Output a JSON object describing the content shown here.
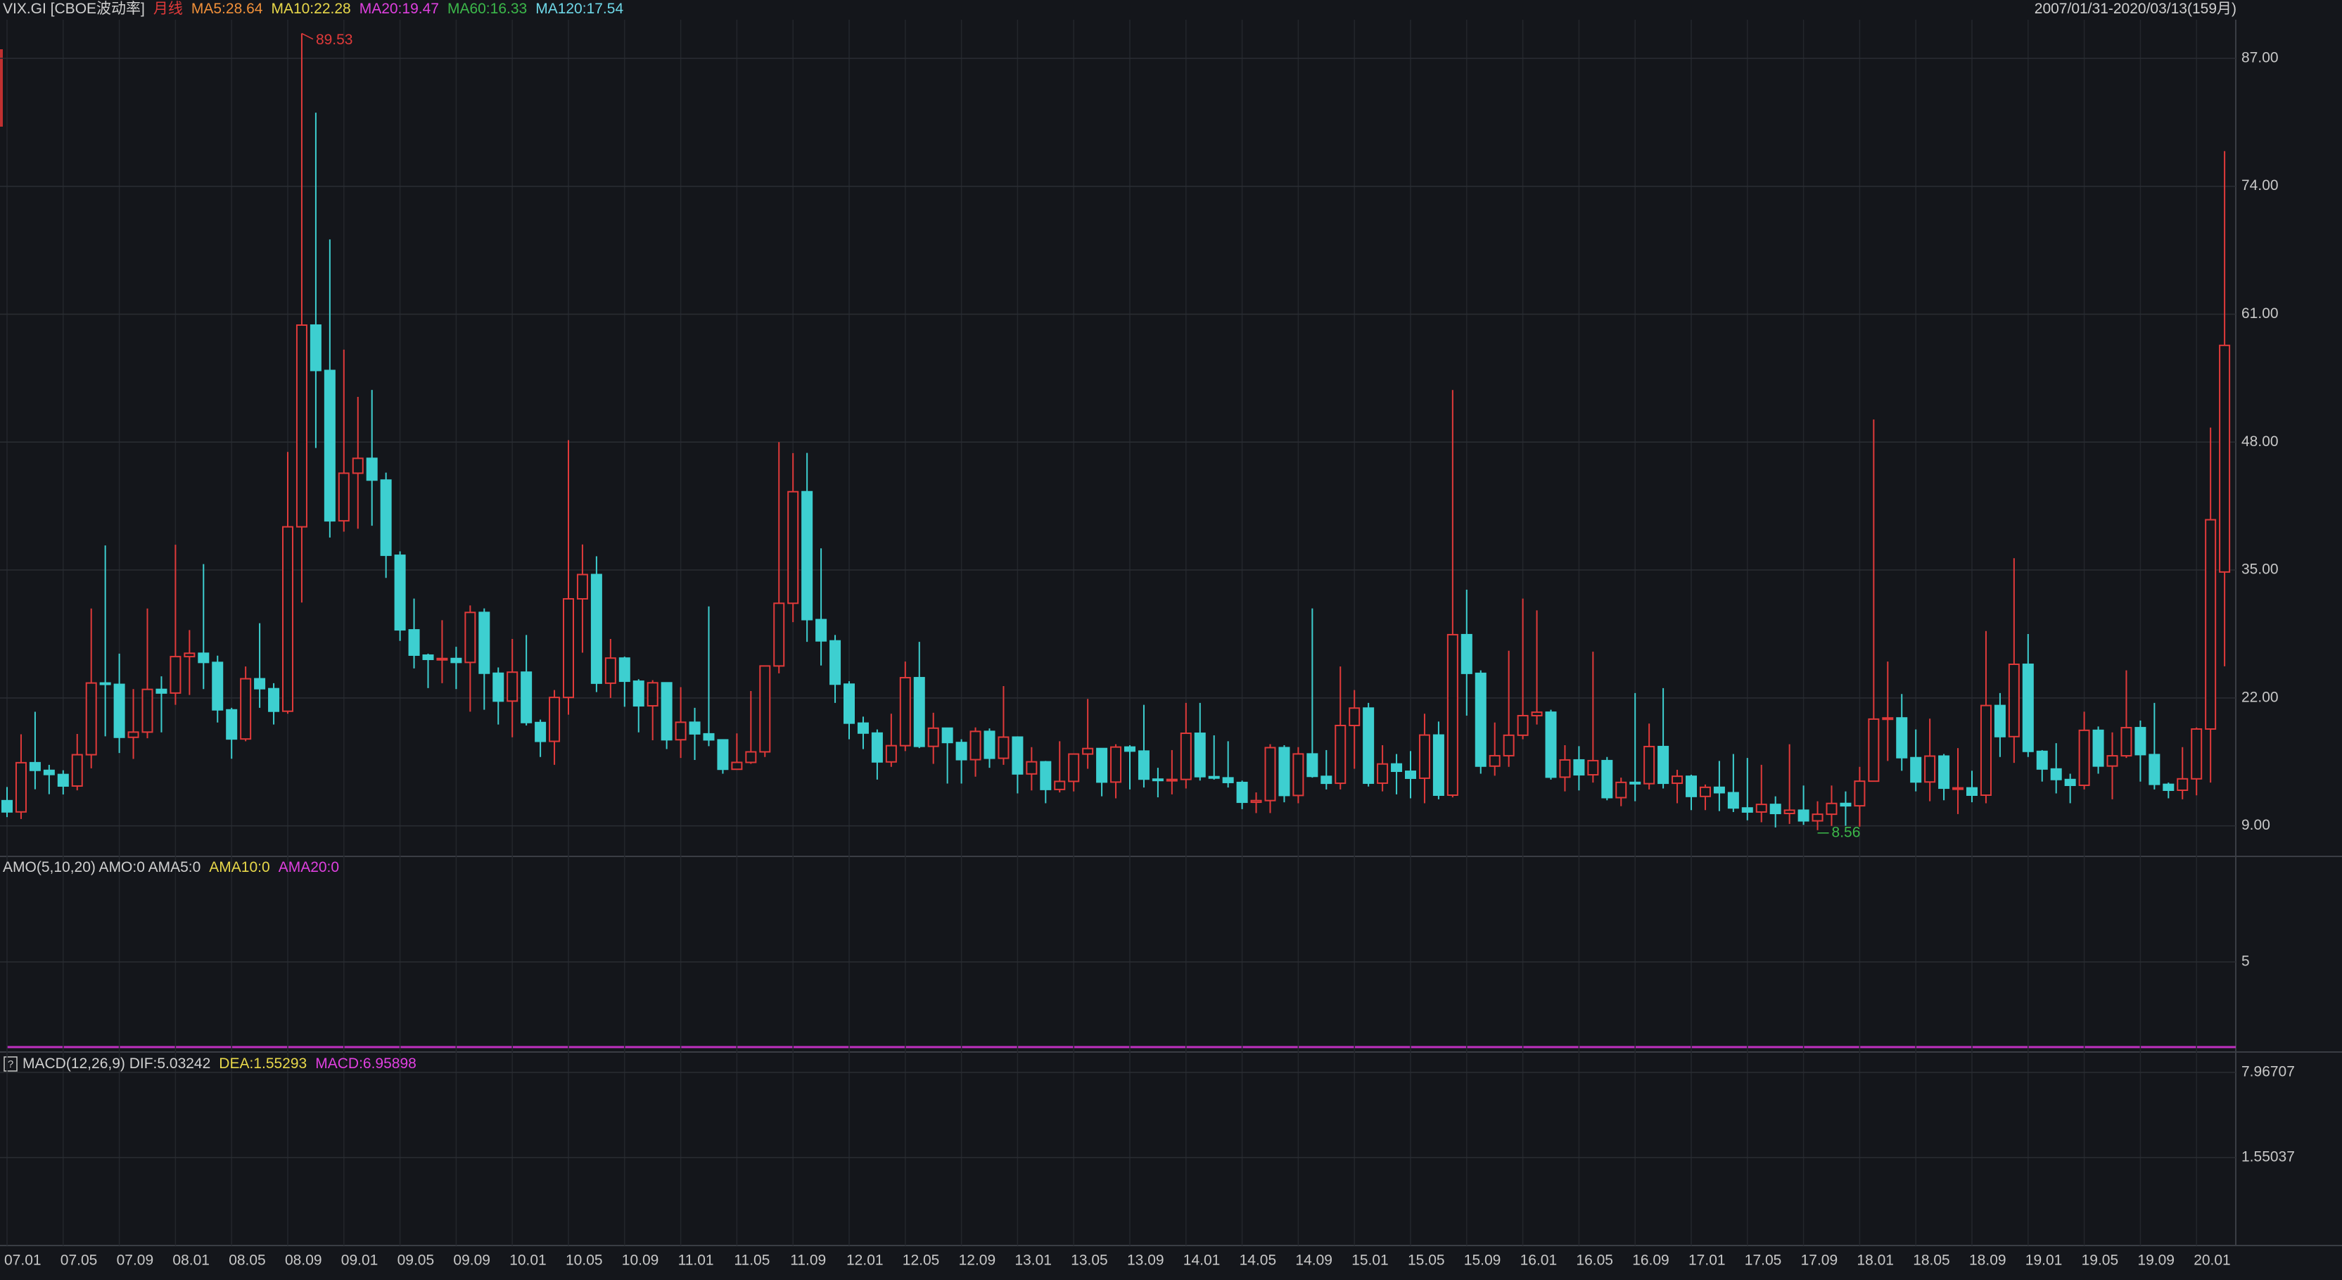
{
  "chart_data": {
    "type": "candlestick",
    "header": {
      "symbol": "VIX.GI [CBOE波动率]",
      "period": "月线",
      "period_color": "#e03a3a",
      "indicators": [
        {
          "label": "MA5:28.64",
          "color": "#f0903a"
        },
        {
          "label": "MA10:22.28",
          "color": "#e8d84a"
        },
        {
          "label": "MA20:19.47",
          "color": "#e040e0"
        },
        {
          "label": "MA60:16.33",
          "color": "#3cb84a"
        },
        {
          "label": "MA120:17.54",
          "color": "#6fd8e8"
        }
      ],
      "range": "2007/01/31-2020/03/13(159月)"
    },
    "categories": [
      "07.01",
      null,
      null,
      null,
      "07.05",
      null,
      null,
      null,
      "07.09",
      null,
      null,
      null,
      "08.01",
      null,
      null,
      null,
      "08.05",
      null,
      null,
      null,
      "08.09",
      null,
      null,
      null,
      "09.01",
      null,
      null,
      null,
      "09.05",
      null,
      null,
      null,
      "09.09",
      null,
      null,
      null,
      "10.01",
      null,
      null,
      null,
      "10.05",
      null,
      null,
      null,
      "10.09",
      null,
      null,
      null,
      "11.01",
      null,
      null,
      null,
      "11.05",
      null,
      null,
      null,
      "11.09",
      null,
      null,
      null,
      "12.01",
      null,
      null,
      null,
      "12.05",
      null,
      null,
      null,
      "12.09",
      null,
      null,
      null,
      "13.01",
      null,
      null,
      null,
      "13.05",
      null,
      null,
      null,
      "13.09",
      null,
      null,
      null,
      "14.01",
      null,
      null,
      null,
      "14.05",
      null,
      null,
      null,
      "14.09",
      null,
      null,
      null,
      "15.01",
      null,
      null,
      null,
      "15.05",
      null,
      null,
      null,
      "15.09",
      null,
      null,
      null,
      "16.01",
      null,
      null,
      null,
      "16.05",
      null,
      null,
      null,
      "16.09",
      null,
      null,
      null,
      "17.01",
      null,
      null,
      null,
      "17.05",
      null,
      null,
      null,
      "17.09",
      null,
      null,
      null,
      "18.01",
      null,
      null,
      null,
      "18.05",
      null,
      null,
      null,
      "18.09",
      null,
      null,
      null,
      "19.01",
      null,
      null,
      null,
      "19.05",
      null,
      null,
      null,
      "19.09",
      null,
      null,
      null,
      "20.01",
      null,
      null
    ],
    "open": [
      11.56,
      10.42,
      15.42,
      14.64,
      14.22,
      13.05,
      16.23,
      23.52,
      23.38,
      18.0,
      18.53,
      22.87,
      22.5,
      26.2,
      26.54,
      25.61,
      20.79,
      17.83,
      23.95,
      22.94,
      20.65,
      39.39,
      59.89,
      55.28,
      40.0,
      44.84,
      46.35,
      44.14,
      36.5,
      28.92,
      26.35,
      25.92,
      26.01,
      25.61,
      30.69,
      24.51,
      21.68,
      24.62,
      19.5,
      17.59,
      22.05,
      32.07,
      34.54,
      23.5,
      26.05,
      23.7,
      21.2,
      23.54,
      17.75,
      19.53,
      18.35,
      17.74,
      14.75,
      15.45,
      16.52,
      25.25,
      31.62,
      42.96,
      29.96,
      27.8,
      23.4,
      19.44,
      18.43,
      15.5,
      17.15,
      24.06,
      17.08,
      18.93,
      17.47,
      15.73,
      18.6,
      15.87,
      18.02,
      14.28,
      15.51,
      12.7,
      13.52,
      16.3,
      16.86,
      13.45,
      17.01,
      16.6,
      13.75,
      13.7,
      13.72,
      18.41,
      14.0,
      13.88,
      13.41,
      11.4,
      11.57,
      16.95,
      12.09,
      16.31,
      14.03,
      13.33,
      19.2,
      20.97,
      13.34,
      15.29,
      14.55,
      13.84,
      18.23,
      12.12,
      28.43,
      24.5,
      15.07,
      16.13,
      18.21,
      20.2,
      20.55,
      13.95,
      15.7,
      14.19,
      15.63,
      11.87,
      13.42,
      13.29,
      17.06,
      13.33,
      14.04,
      11.99,
      12.92,
      12.37,
      10.82,
      10.41,
      11.18,
      10.26,
      10.59,
      9.51,
      10.18,
      11.28,
      11.04,
      13.54,
      19.85,
      19.97,
      15.93,
      13.46,
      16.09,
      12.83,
      12.86,
      12.12,
      21.23,
      18.07,
      25.42,
      16.57,
      14.78,
      13.71,
      13.12,
      18.71,
      15.08,
      16.12,
      18.98,
      16.24,
      13.22,
      12.62,
      13.78,
      18.84,
      34.8
    ],
    "high": [
      12.95,
      18.31,
      20.59,
      15.2,
      14.65,
      18.34,
      31.09,
      37.5,
      26.5,
      22.9,
      31.09,
      24.2,
      37.57,
      28.9,
      35.6,
      26.3,
      21.0,
      25.2,
      29.6,
      23.5,
      47.0,
      89.53,
      81.48,
      68.6,
      57.4,
      52.6,
      53.3,
      44.9,
      36.9,
      32.1,
      26.5,
      29.9,
      27.2,
      31.4,
      31.1,
      25.1,
      28.0,
      28.4,
      19.8,
      22.8,
      48.2,
      37.6,
      36.4,
      28.0,
      26.2,
      23.9,
      23.8,
      23.6,
      23.1,
      21.0,
      31.3,
      17.8,
      18.4,
      22.7,
      25.3,
      48.0,
      46.88,
      46.9,
      37.2,
      28.4,
      23.7,
      20.1,
      18.8,
      20.4,
      25.7,
      27.7,
      20.5,
      18.9,
      17.8,
      19.0,
      18.9,
      23.2,
      18.1,
      17.0,
      15.6,
      17.6,
      16.3,
      21.9,
      16.9,
      17.3,
      17.2,
      21.3,
      14.9,
      16.7,
      21.5,
      21.5,
      18.2,
      17.6,
      13.6,
      12.4,
      17.3,
      17.2,
      17.0,
      31.1,
      16.7,
      25.2,
      22.8,
      21.5,
      17.2,
      16.3,
      16.6,
      20.4,
      19.6,
      53.29,
      33.0,
      24.8,
      19.5,
      26.8,
      32.1,
      30.9,
      20.8,
      17.2,
      17.1,
      26.7,
      16.0,
      13.9,
      22.5,
      19.4,
      23.0,
      14.7,
      14.2,
      13.2,
      15.6,
      16.3,
      15.9,
      15.2,
      12.0,
      17.3,
      13.1,
      11.5,
      13.1,
      12.5,
      15.0,
      50.3,
      25.7,
      22.4,
      18.8,
      19.9,
      16.3,
      16.9,
      14.6,
      28.8,
      22.5,
      36.2,
      28.5,
      16.7,
      17.4,
      14.3,
      20.6,
      19.1,
      18.5,
      24.8,
      19.7,
      21.5,
      13.4,
      17.0,
      19.0,
      49.48,
      77.57
    ],
    "low": [
      9.89,
      9.7,
      12.72,
      12.22,
      12.19,
      12.61,
      14.85,
      18.1,
      16.4,
      15.8,
      17.9,
      18.5,
      21.3,
      22.3,
      22.9,
      19.5,
      15.82,
      17.6,
      21.0,
      19.3,
      20.4,
      31.7,
      47.4,
      38.3,
      38.9,
      39.2,
      39.5,
      34.2,
      27.8,
      25.0,
      23.0,
      23.5,
      22.9,
      20.6,
      20.8,
      19.3,
      18.0,
      19.2,
      16.0,
      15.2,
      20.3,
      26.6,
      22.6,
      22.0,
      21.1,
      18.5,
      17.7,
      16.8,
      15.9,
      15.7,
      17.1,
      14.3,
      14.7,
      15.3,
      16.0,
      24.5,
      29.7,
      27.7,
      25.3,
      21.5,
      17.8,
      16.8,
      13.7,
      15.0,
      16.6,
      16.9,
      15.3,
      13.3,
      13.3,
      14.0,
      14.9,
      15.2,
      12.3,
      12.6,
      11.3,
      12.4,
      12.5,
      14.8,
      12.0,
      11.8,
      12.7,
      12.9,
      11.9,
      12.2,
      12.8,
      13.6,
      13.7,
      12.9,
      10.7,
      10.3,
      10.3,
      11.4,
      11.3,
      13.9,
      12.7,
      12.7,
      14.8,
      13.0,
      12.5,
      12.2,
      11.8,
      11.3,
      11.7,
      11.9,
      20.2,
      14.3,
      14.1,
      15.0,
      17.8,
      19.3,
      13.7,
      12.5,
      12.6,
      13.4,
      11.6,
      11.0,
      11.5,
      12.7,
      12.8,
      11.3,
      10.6,
      10.6,
      10.5,
      10.4,
      9.56,
      9.37,
      8.84,
      9.2,
      9.1,
      8.56,
      8.99,
      9.0,
      8.92,
      13.5,
      15.6,
      14.6,
      12.5,
      11.5,
      11.6,
      10.2,
      11.4,
      11.3,
      16.0,
      15.4,
      16.0,
      13.5,
      12.3,
      11.3,
      12.7,
      14.3,
      11.7,
      15.9,
      13.5,
      12.7,
      11.8,
      11.7,
      12.1,
      13.4,
      25.22
    ],
    "close": [
      10.42,
      15.42,
      14.64,
      14.22,
      13.05,
      16.23,
      23.52,
      23.38,
      18.0,
      18.53,
      22.87,
      22.5,
      26.2,
      26.54,
      25.61,
      20.79,
      17.83,
      23.95,
      22.94,
      20.65,
      39.39,
      59.89,
      55.28,
      40.0,
      44.84,
      46.35,
      44.14,
      36.5,
      28.92,
      26.35,
      25.92,
      26.01,
      25.61,
      30.69,
      24.51,
      21.68,
      24.62,
      19.5,
      17.59,
      22.05,
      32.07,
      34.54,
      23.5,
      26.05,
      23.7,
      21.2,
      23.54,
      17.75,
      19.53,
      18.35,
      17.74,
      14.75,
      15.45,
      16.52,
      25.25,
      31.62,
      42.96,
      29.96,
      27.8,
      23.4,
      19.44,
      18.43,
      15.5,
      17.15,
      24.06,
      17.08,
      18.93,
      17.47,
      15.73,
      18.6,
      15.87,
      18.02,
      14.28,
      15.51,
      12.7,
      13.52,
      16.3,
      16.86,
      13.45,
      17.01,
      16.6,
      13.75,
      13.7,
      13.72,
      18.41,
      14.0,
      13.88,
      13.41,
      11.4,
      11.57,
      16.95,
      12.09,
      16.31,
      14.03,
      13.33,
      19.2,
      20.97,
      13.34,
      15.29,
      14.55,
      13.84,
      18.23,
      12.12,
      28.43,
      24.5,
      15.07,
      16.13,
      18.21,
      20.2,
      20.55,
      13.95,
      15.7,
      14.19,
      15.63,
      11.87,
      13.42,
      13.29,
      17.06,
      13.33,
      14.04,
      11.99,
      12.92,
      12.37,
      10.82,
      10.41,
      11.18,
      10.26,
      10.59,
      9.51,
      10.18,
      11.28,
      11.04,
      13.54,
      19.85,
      19.97,
      15.93,
      13.46,
      16.09,
      12.83,
      12.86,
      12.12,
      21.23,
      18.07,
      25.42,
      16.57,
      14.78,
      13.71,
      13.12,
      18.71,
      15.08,
      16.12,
      18.98,
      16.24,
      13.22,
      12.62,
      13.78,
      18.84,
      40.11,
      57.83
    ],
    "up_color": "#e03a3a",
    "down_color": "#3dcfd0",
    "ylim": [
      5.97,
      90.64
    ],
    "yticks": [
      {
        "value": 9,
        "label": "9.00"
      },
      {
        "value": 22,
        "label": "22.00"
      },
      {
        "value": 35,
        "label": "35.00"
      },
      {
        "value": 48,
        "label": "48.00"
      },
      {
        "value": 61,
        "label": "61.00"
      },
      {
        "value": 74,
        "label": "74.00"
      },
      {
        "value": 87,
        "label": "87.00"
      }
    ],
    "grid": true,
    "max_label": "89.53",
    "min_label": "8.56",
    "amo": {
      "label": [
        {
          "text": "AMO(5,10,20) AMO:0 AMA5:0",
          "color": "#d0d0d0"
        },
        {
          "text": "AMA10:0",
          "color": "#e8d84a"
        },
        {
          "text": "AMA20:0",
          "color": "#e040e0"
        }
      ],
      "ylim": [
        0,
        10.25
      ],
      "yticks": [
        5
      ]
    },
    "macd": {
      "label": [
        {
          "text": "MACD(12,26,9) DIF:5.03242",
          "color": "#d0d0d0"
        },
        {
          "text": "DEA:1.55293",
          "color": "#e8d84a"
        },
        {
          "text": "MACD:6.95898",
          "color": "#e040e0"
        }
      ],
      "ylim": [
        -4.97,
        8.71
      ],
      "yticks": [
        1.55037,
        7.96707
      ]
    }
  }
}
